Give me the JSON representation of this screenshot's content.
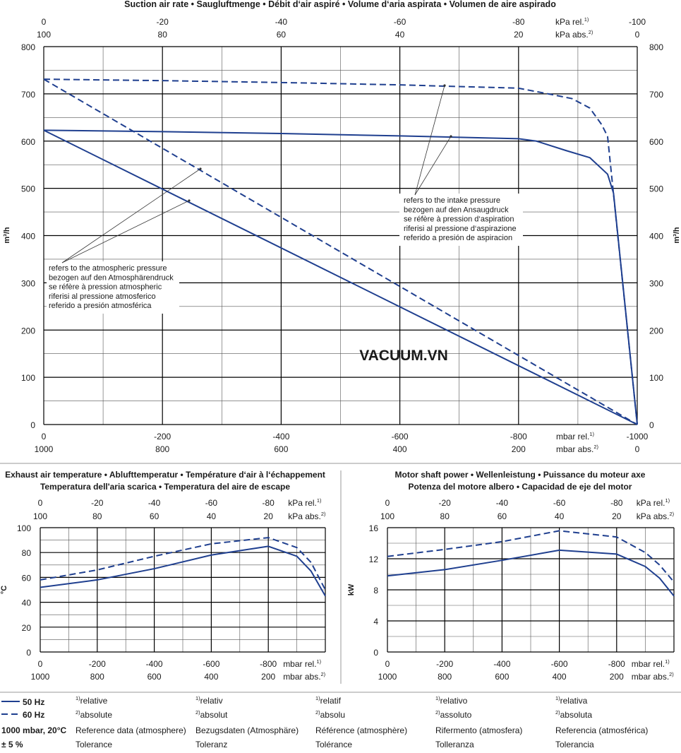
{
  "colors": {
    "line": "#1f3f8f",
    "grid": "#000000",
    "divider": "#9a9a9a"
  },
  "watermark": "VACUUM.VN",
  "chart_data": [
    {
      "type": "line",
      "title": "Suction air rate  •  Saugluftmenge  •  Débit d‘air aspiré  •  Volume d‘aria aspirata  •  Volumen de aire aspirado",
      "ylabel": "m³/h",
      "ylim": [
        0,
        800
      ],
      "yticks": [
        0,
        100,
        200,
        300,
        400,
        500,
        600,
        700,
        800
      ],
      "xlim": [
        0,
        -1000
      ],
      "x_mbar_rel": [
        0,
        -200,
        -400,
        -600,
        -800,
        -1000
      ],
      "x_mbar_abs": [
        1000,
        800,
        600,
        400,
        200,
        0
      ],
      "x_kpa_rel": [
        0,
        -20,
        -40,
        -60,
        -80,
        -100
      ],
      "x_kpa_abs": [
        100,
        80,
        60,
        40,
        20,
        0
      ],
      "unit_mbar_rel": "mbar rel.",
      "unit_mbar_abs": "mbar abs.",
      "unit_kpa_rel": "kPa rel.",
      "unit_kpa_abs": "kPa abs.",
      "sup1": "1)",
      "sup2": "2)",
      "series": [
        {
          "name": "50 Hz",
          "reference": "intake",
          "x": [
            0,
            -200,
            -400,
            -600,
            -800,
            -830,
            -880,
            -920,
            -950,
            -960,
            -1000
          ],
          "values": [
            623,
            620,
            616,
            611,
            605,
            600,
            580,
            565,
            530,
            490,
            0
          ]
        },
        {
          "name": "60 Hz",
          "reference": "intake",
          "x": [
            0,
            -200,
            -400,
            -600,
            -800,
            -850,
            -890,
            -920,
            -940,
            -950,
            -1000
          ],
          "values": [
            731,
            728,
            724,
            719,
            712,
            700,
            690,
            670,
            635,
            610,
            0
          ]
        },
        {
          "name": "50 Hz",
          "reference": "atmosphere",
          "x": [
            0,
            -1000
          ],
          "values": [
            623,
            0
          ]
        },
        {
          "name": "60 Hz",
          "reference": "atmosphere",
          "x": [
            0,
            -1000
          ],
          "values": [
            731,
            0
          ]
        }
      ],
      "annotations": {
        "intake": [
          "refers to the intake pressure",
          "bezogen auf den Ansaugdruck",
          "se réfère à pression d‘aspiration",
          "riferisi al pressione d‘aspirazione",
          "referido a presión de aspiracion"
        ],
        "atmosphere": [
          "refers to the atmospheric pressure",
          "bezogen auf den Atmosphärendruck",
          "se réfère à pression atmospheric",
          "riferisi al pressione atmosferico",
          "referido a presión atmosférica"
        ]
      }
    },
    {
      "type": "line",
      "title": [
        "Exhaust air temperature  •  Ablufttemperatur  •  Température d‘air à l‘échappement",
        "Temperatura dell'aria scarica  •  Temperatura del aire de escape"
      ],
      "ylabel": "°C",
      "ylim": [
        0,
        100
      ],
      "yticks": [
        0,
        20,
        40,
        60,
        80,
        100
      ],
      "xlim": [
        0,
        -1000
      ],
      "series": [
        {
          "name": "50 Hz",
          "x": [
            0,
            -200,
            -400,
            -600,
            -800,
            -900,
            -950,
            -1000
          ],
          "values": [
            52,
            58,
            67,
            78,
            85,
            77,
            65,
            45
          ]
        },
        {
          "name": "60 Hz",
          "x": [
            0,
            -200,
            -400,
            -600,
            -800,
            -900,
            -950,
            -1000
          ],
          "values": [
            58,
            66,
            77,
            87,
            92,
            84,
            72,
            50
          ]
        }
      ]
    },
    {
      "type": "line",
      "title": [
        "Motor shaft power  •  Wellenleistung  •  Puissance du moteur axe",
        "Potenza del motore albero  •  Capacidad de eje del motor"
      ],
      "ylabel": "kW",
      "ylim": [
        0,
        16
      ],
      "yticks": [
        0,
        4,
        8,
        12,
        16
      ],
      "xlim": [
        0,
        -1000
      ],
      "series": [
        {
          "name": "50 Hz",
          "x": [
            0,
            -200,
            -400,
            -600,
            -800,
            -900,
            -950,
            -1000
          ],
          "values": [
            9.8,
            10.6,
            11.8,
            13.1,
            12.6,
            11.0,
            9.5,
            7.2
          ]
        },
        {
          "name": "60 Hz",
          "x": [
            0,
            -200,
            -400,
            -600,
            -800,
            -900,
            -950,
            -1000
          ],
          "values": [
            12.3,
            13.2,
            14.2,
            15.6,
            14.8,
            12.8,
            11.2,
            9.0
          ]
        }
      ]
    }
  ],
  "legend": {
    "hz50": "50 Hz",
    "hz60": "60 Hz",
    "std": "1000 mbar, 20°C",
    "tol": "± 5 %",
    "columns": [
      {
        "rel": "relative",
        "abs": "absolute",
        "ref": "Reference data (atmosphere)",
        "tol": "Tolerance"
      },
      {
        "rel": "relativ",
        "abs": "absolut",
        "ref": "Bezugsdaten (Atmosphäre)",
        "tol": "Toleranz"
      },
      {
        "rel": "relatif",
        "abs": "absolu",
        "ref": "Référence (atmosphère)",
        "tol": "Tolérance"
      },
      {
        "rel": "relativo",
        "abs": "assoluto",
        "ref": "Rifermento (atmosfera)",
        "tol": "Tolleranza"
      },
      {
        "rel": "relativa",
        "abs": "absoluta",
        "ref": "Referencia (atmosférica)",
        "tol": "Tolerancia"
      }
    ]
  }
}
